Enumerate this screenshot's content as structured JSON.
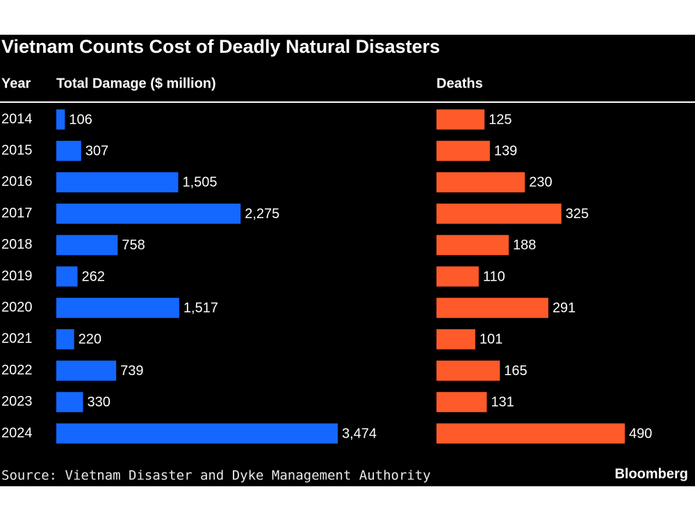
{
  "chart_data": {
    "type": "bar",
    "title": "Vietnam Counts Cost of Deadly Natural Disasters",
    "category_label": "Year",
    "categories": [
      "2014",
      "2015",
      "2016",
      "2017",
      "2018",
      "2019",
      "2020",
      "2021",
      "2022",
      "2023",
      "2024"
    ],
    "series": [
      {
        "name": "Total Damage ($ million)",
        "color": "#1467ff",
        "values": [
          106,
          307,
          1505,
          2275,
          758,
          262,
          1517,
          220,
          739,
          330,
          3474
        ],
        "value_labels": [
          "106",
          "307",
          "1,505",
          "2,275",
          "758",
          "262",
          "1,517",
          "220",
          "739",
          "330",
          "3,474"
        ]
      },
      {
        "name": "Deaths",
        "color": "#ff5a2a",
        "values": [
          125,
          139,
          230,
          325,
          188,
          110,
          291,
          101,
          165,
          131,
          490
        ]
      }
    ],
    "source": "Source: Vietnam Disaster and Dyke Management Authority",
    "brand": "Bloomberg"
  }
}
